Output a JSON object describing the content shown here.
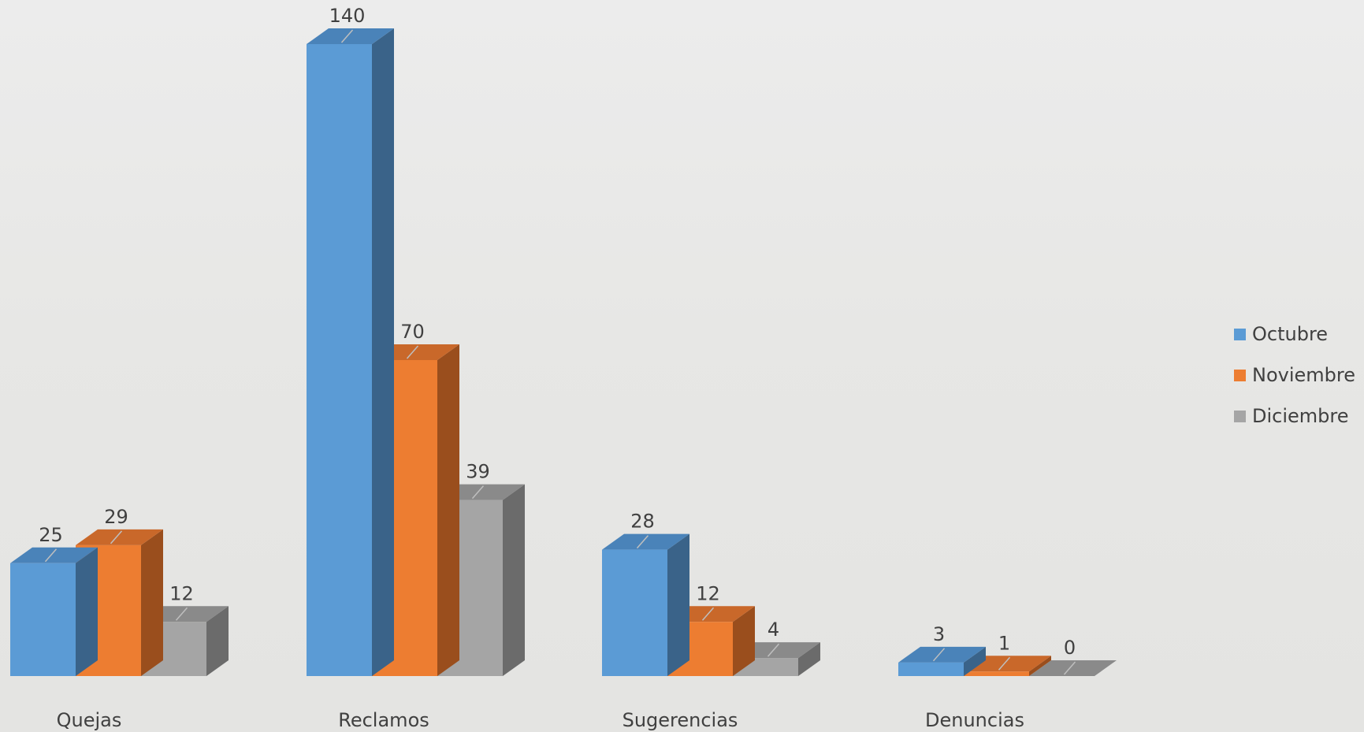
{
  "chart_data": {
    "type": "bar",
    "style": "3d-clustered-column",
    "categories": [
      "Quejas",
      "Reclamos",
      "Sugerencias",
      "Denuncias"
    ],
    "series": [
      {
        "name": "Octubre",
        "color": "#5B9BD5",
        "side_color": "#3A6389",
        "top_color": "#4A83B9",
        "values": [
          25,
          140,
          28,
          3
        ]
      },
      {
        "name": "Noviembre",
        "color": "#ED7D31",
        "side_color": "#9A4E1D",
        "top_color": "#C9682A",
        "values": [
          29,
          70,
          12,
          1
        ]
      },
      {
        "name": "Diciembre",
        "color": "#A5A5A5",
        "side_color": "#6B6B6B",
        "top_color": "#8A8A8A",
        "values": [
          12,
          39,
          4,
          0
        ]
      }
    ],
    "ylim": [
      0,
      140
    ],
    "grid": false,
    "legend_position": "right"
  }
}
